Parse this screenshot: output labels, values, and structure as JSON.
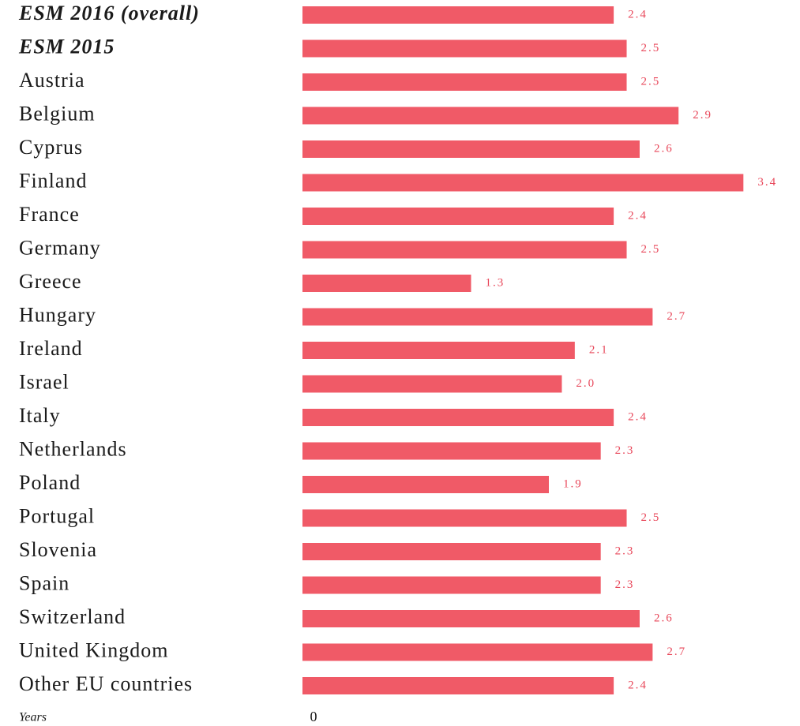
{
  "chart_data": {
    "type": "bar",
    "orientation": "horizontal",
    "categories": [
      "ESM 2016 (overall)",
      "ESM 2015",
      "Austria",
      "Belgium",
      "Cyprus",
      "Finland",
      "France",
      "Germany",
      "Greece",
      "Hungary",
      "Ireland",
      "Israel",
      "Italy",
      "Netherlands",
      "Poland",
      "Portugal",
      "Slovenia",
      "Spain",
      "Switzerland",
      "United Kingdom",
      "Other EU countries"
    ],
    "values": [
      2.4,
      2.5,
      2.5,
      2.9,
      2.6,
      3.4,
      2.4,
      2.5,
      1.3,
      2.7,
      2.1,
      2.0,
      2.4,
      2.3,
      1.9,
      2.5,
      2.3,
      2.3,
      2.6,
      2.7,
      2.4
    ],
    "value_labels": [
      "2.4",
      "2.5",
      "2.5",
      "2.9",
      "2.6",
      "3.4",
      "2.4",
      "2.5",
      "1.3",
      "2.7",
      "2.1",
      "2.0",
      "2.4",
      "2.3",
      "1.9",
      "2.5",
      "2.3",
      "2.3",
      "2.6",
      "2.7",
      "2.4"
    ],
    "color": "#f05a67",
    "x_label": "Years",
    "xlim": [
      0,
      3.8
    ],
    "xticks": [
      0
    ]
  }
}
